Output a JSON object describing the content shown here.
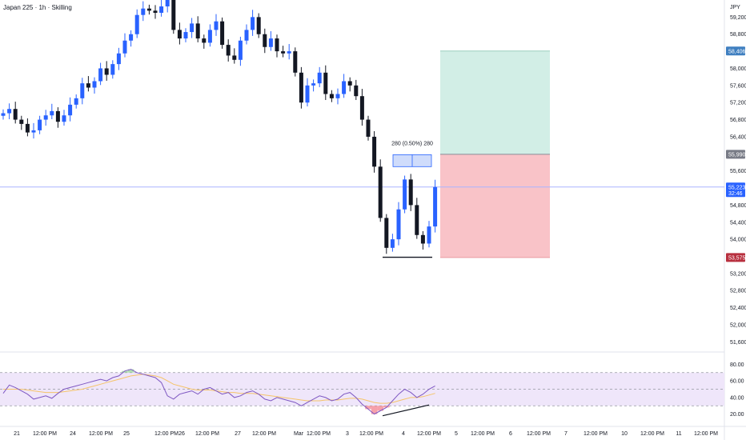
{
  "header": {
    "title": "Japan 225 · 1h · Skilling",
    "currency": "JPY"
  },
  "colors": {
    "up": "#2962ff",
    "down": "#131722",
    "profit_zone": "#d2eee6",
    "loss_zone": "#f9c3c8",
    "price_line": "#aab4ff",
    "rsi_line": "#7e57c2",
    "rsi_ma": "#f5c46a",
    "rsi_band": "#efe6fa",
    "tag_blue": "#2962ff",
    "tag_gray": "#787b86",
    "tag_red": "#b8303f",
    "tag_target": "#3f7fc0"
  },
  "chart_data": [
    {
      "type": "candlestick",
      "title": "Japan 225",
      "price_axis": {
        "ticks": [
          "59,200",
          "58,800",
          "58,000",
          "57,600",
          "57,200",
          "56,800",
          "56,400",
          "55,600",
          "54,800",
          "54,400",
          "54,000",
          "53,200",
          "52,800",
          "52,400",
          "52,000",
          "51,600"
        ],
        "range": [
          51400,
          59600
        ]
      },
      "time_axis": {
        "labels": [
          "21",
          "12:00 PM",
          "24",
          "12:00 PM",
          "25",
          "12:00 PM",
          "26",
          "12:00 PM",
          "27",
          "12:00 PM",
          "Mar",
          "12:00 PM",
          "3",
          "12:00 PM",
          "4",
          "12:00 PM",
          "5",
          "12:00 PM",
          "6",
          "12:00 PM",
          "7",
          "12:00 PM",
          "10",
          "12:00 PM",
          "11",
          "12:00 PM"
        ]
      },
      "price_tags": {
        "target": "58,406",
        "entry": "55,990",
        "current": "55,223",
        "countdown": "32:46",
        "stop": "53,575"
      },
      "trade_levels": {
        "target": 58406,
        "entry": 55990,
        "stop": 53575
      },
      "measure": {
        "label": "280 (0.50%) 280",
        "from": 55700,
        "to": 55980
      },
      "support_level": 53580,
      "approx_closes": [
        56950,
        57050,
        56800,
        56700,
        56500,
        56550,
        56800,
        56900,
        57000,
        56750,
        56900,
        57150,
        57300,
        57650,
        57550,
        57700,
        58000,
        57850,
        58100,
        58350,
        58650,
        58800,
        59250,
        59400,
        59350,
        59300,
        59450,
        59600,
        58900,
        58700,
        58850,
        59050,
        58700,
        58600,
        58900,
        59100,
        58550,
        58300,
        58200,
        58650,
        58900,
        59200,
        58800,
        58500,
        58700,
        58400,
        58350,
        58400,
        57900,
        57200,
        57600,
        57650,
        57900,
        57400,
        57300,
        57400,
        57700,
        57600,
        57350,
        56800,
        56400,
        55700,
        54500,
        53800,
        54000,
        54700,
        55400,
        54800,
        54100,
        53900,
        54300,
        55223
      ],
      "annotations": [
        "Long position: target 58,406 / entry 55,990 / stop 53,575"
      ]
    },
    {
      "type": "line",
      "title": "RSI",
      "y_ticks": [
        "80.00",
        "60.00",
        "40.00",
        "20.00"
      ],
      "ylim": [
        10,
        90
      ],
      "levels": [
        70,
        50,
        30
      ],
      "series": [
        {
          "values": [
            45,
            55,
            52,
            48,
            44,
            38,
            40,
            42,
            39,
            45,
            50,
            52,
            54,
            56,
            58,
            60,
            62,
            60,
            64,
            66,
            72,
            74,
            70,
            68,
            66,
            64,
            58,
            42,
            38,
            44,
            46,
            48,
            44,
            50,
            52,
            48,
            44,
            46,
            40,
            42,
            46,
            48,
            44,
            38,
            36,
            40,
            38,
            36,
            34,
            30,
            34,
            38,
            42,
            40,
            36,
            38,
            44,
            46,
            40,
            32,
            26,
            20,
            24,
            28,
            36,
            44,
            50,
            46,
            40,
            44,
            50,
            54
          ]
        },
        {
          "values": [
            50,
            50,
            50,
            50,
            49,
            48,
            47,
            46,
            46,
            46,
            47,
            48,
            49,
            50,
            52,
            54,
            56,
            58,
            60,
            62,
            64,
            66,
            67,
            68,
            67,
            66,
            64,
            60,
            56,
            54,
            52,
            50,
            49,
            49,
            49,
            48,
            47,
            46,
            46,
            45,
            45,
            45,
            44,
            43,
            42,
            41,
            40,
            39,
            38,
            37,
            36,
            36,
            36,
            37,
            37,
            37,
            38,
            39,
            39,
            38,
            36,
            34,
            33,
            33,
            34,
            36,
            38,
            40,
            40,
            41,
            43,
            45
          ]
        }
      ],
      "divergence": "higher low vs lower price low"
    }
  ]
}
